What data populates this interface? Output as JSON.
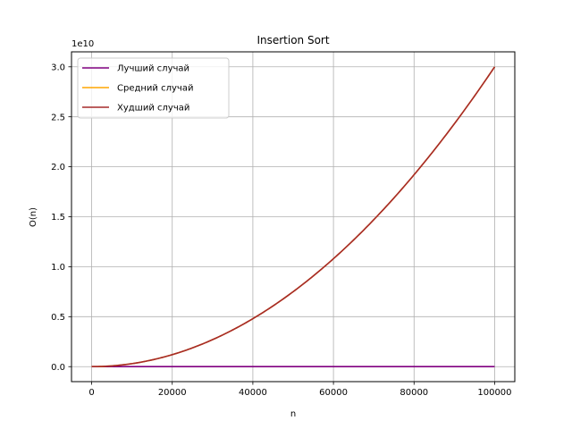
{
  "chart_data": {
    "type": "line",
    "title": "Insertion Sort",
    "xlabel": "n",
    "ylabel": "O(n)",
    "y_offset_label": "1e10",
    "y_scale": 10000000000,
    "xlim": [
      -5000,
      105000
    ],
    "ylim": [
      -1500000000,
      31500000000
    ],
    "x_ticks": [
      0,
      20000,
      40000,
      60000,
      80000,
      100000
    ],
    "x_tick_labels": [
      "0",
      "20000",
      "40000",
      "60000",
      "80000",
      "100000"
    ],
    "y_ticks": [
      0,
      5000000000,
      10000000000,
      15000000000,
      20000000000,
      25000000000,
      30000000000
    ],
    "y_tick_labels": [
      "0.0",
      "0.5",
      "1.0",
      "1.5",
      "2.0",
      "2.5",
      "3.0"
    ],
    "grid": true,
    "legend_position": "top-left",
    "series": [
      {
        "name": "Лучший случай",
        "color": "#800080",
        "formula": "n",
        "x_min": 0,
        "x_max": 100000
      },
      {
        "name": "Средний случай",
        "color": "#FFA500",
        "formula": "3n^2",
        "x_min": 0,
        "x_max": 100000
      },
      {
        "name": "Худший случай",
        "color": "#A52A2A",
        "formula": "3n^2",
        "x_min": 0,
        "x_max": 100000
      }
    ]
  }
}
